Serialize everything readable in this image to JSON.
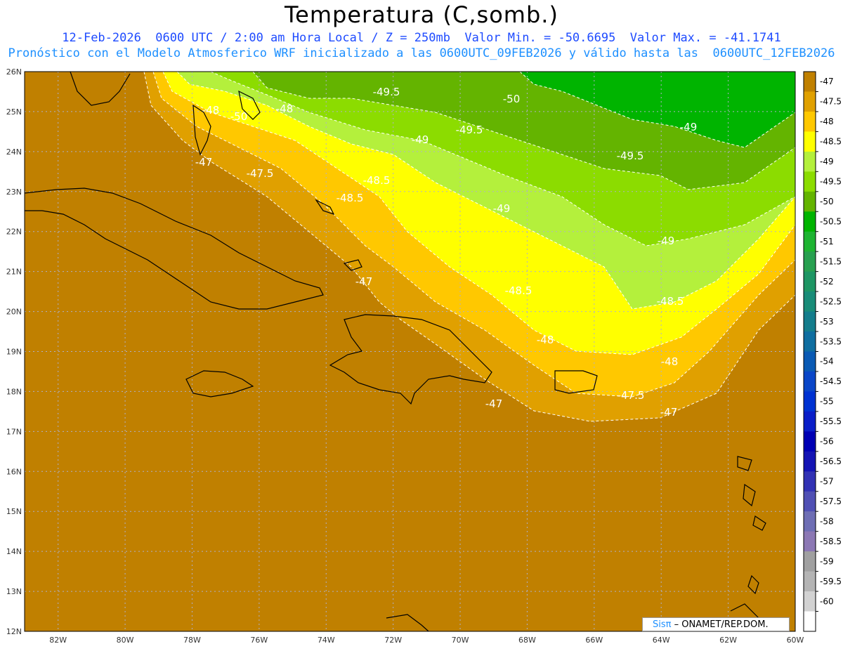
{
  "title": "Temperatura (C,somb.)",
  "subtitle_line1": "12-Feb-2026  0600 UTC / 2:00 am Hora Local / Z = 250mb  Valor Min. = -50.6695  Valor Max. = -41.1741",
  "subtitle_line2": "Pronóstico con el Modelo Atmosferico WRF inicializado a las 0600UTC_09FEB2026 y válido hasta las  0600UTC_12FEB2026",
  "credit": {
    "brand": "Sisπ",
    "text": " – ONAMET/REP.DOM."
  },
  "map": {
    "lon_range": [
      -83,
      -60
    ],
    "lat_range": [
      12,
      26
    ],
    "lon_labels": [
      "82W",
      "80W",
      "78W",
      "76W",
      "74W",
      "72W",
      "70W",
      "68W",
      "66W",
      "64W",
      "62W",
      "60W"
    ],
    "lat_labels": [
      "26N",
      "25N",
      "24N",
      "23N",
      "22N",
      "21N",
      "20N",
      "19N",
      "18N",
      "17N",
      "16N",
      "15N",
      "14N",
      "13N",
      "12N"
    ],
    "grid": "dotted",
    "contour_labels": [
      "-49.5",
      "-50",
      "-49",
      "-48",
      "-49.5",
      "-49",
      "-50",
      "-49.5",
      "-48.5",
      "-48",
      "-47.5",
      "-48.5",
      "-47",
      "-49",
      "-47",
      "-49",
      "-48.5",
      "-48.5",
      "-48",
      "-48",
      "-47",
      "-47.5",
      "-47"
    ]
  },
  "colorbar": {
    "labels": [
      "-47",
      "-47.5",
      "-48",
      "-48.5",
      "-49",
      "-49.5",
      "-50",
      "-50.5",
      "-51",
      "-51.5",
      "-52",
      "-52.5",
      "-53",
      "-53.5",
      "-54",
      "-54.5",
      "-55",
      "-55.5",
      "-56",
      "-56.5",
      "-57",
      "-57.5",
      "-58",
      "-58.5",
      "-59",
      "-59.5",
      "-60"
    ],
    "colors": [
      "#c08000",
      "#e0a000",
      "#ffc800",
      "#ffff00",
      "#b4f03c",
      "#8cdc00",
      "#64b400",
      "#00b400",
      "#1eb432",
      "#28a050",
      "#1e9664",
      "#198c78",
      "#147d8c",
      "#0f6ea0",
      "#0a5ab4",
      "#0a46c8",
      "#0032d2",
      "#0a1ec8",
      "#0000b4",
      "#1414b4",
      "#3232b4",
      "#5050b4",
      "#6e6eb4",
      "#8c78b4",
      "#a0a0a0",
      "#b4b4b4",
      "#d2d2d2",
      "#ffffff"
    ]
  },
  "colors": {
    "land_sea_warm": "#c08000",
    "contour_line": "#ffffff",
    "coast": "#000000"
  }
}
